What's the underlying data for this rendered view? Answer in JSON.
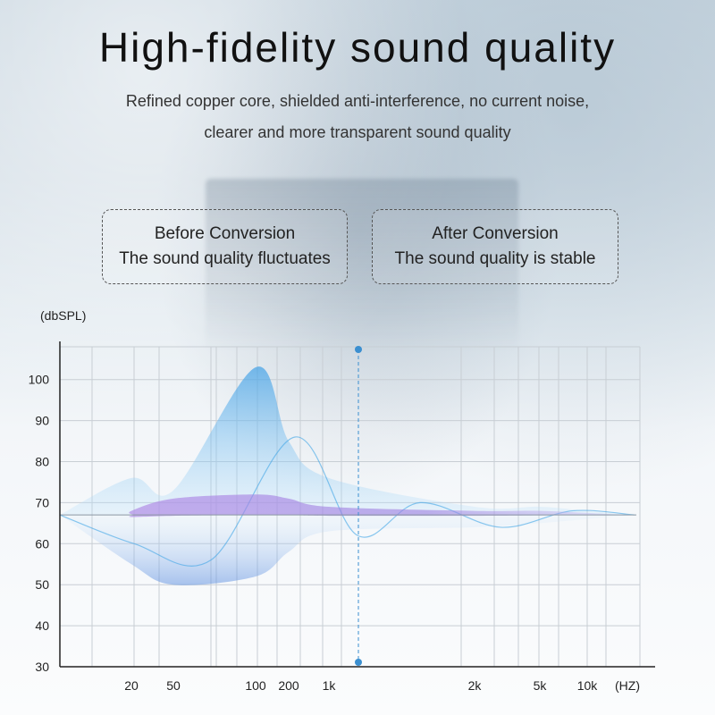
{
  "title": "High-fidelity sound quality",
  "subtitle_line1": "Refined copper core, shielded anti-interference, no current noise,",
  "subtitle_line2": "clearer and more transparent sound quality",
  "before": {
    "title": "Before Conversion",
    "desc": "The sound quality fluctuates"
  },
  "after": {
    "title": "After Conversion",
    "desc": "The sound quality is stable"
  },
  "colors": {
    "before_wave": "#3fa5e6",
    "after_wave": "#a07be0",
    "axis": "#222222",
    "grid": "#c8ced4",
    "marker": "#3b8fd0"
  },
  "chart_data": {
    "type": "area",
    "ylabel": "(dbSPL)",
    "xlabel": "(HZ)",
    "y_ticks": [
      30,
      40,
      50,
      60,
      70,
      80,
      90,
      100
    ],
    "x_ticks": [
      "20",
      "50",
      "100",
      "200",
      "1k",
      "2k",
      "5k",
      "10k"
    ],
    "ylim": [
      30,
      108
    ],
    "baseline": 67,
    "marker_frequency": "1k",
    "series": [
      {
        "name": "Before Conversion",
        "x": [
          "20",
          "50",
          "100",
          "200",
          "1k",
          "2k",
          "5k",
          "10k"
        ],
        "upper": [
          76,
          73,
          103,
          85,
          76,
          69,
          69,
          68
        ],
        "lower": [
          55,
          50,
          52,
          58,
          63,
          64,
          65,
          66
        ]
      },
      {
        "name": "After Conversion",
        "x": [
          "20",
          "50",
          "100",
          "200",
          "1k",
          "2k",
          "5k",
          "10k"
        ],
        "upper": [
          68,
          71,
          72,
          71,
          69,
          68,
          68,
          67.5
        ],
        "lower": [
          66.5,
          66.8,
          67,
          67,
          66.8,
          66.8,
          66.9,
          67
        ]
      }
    ],
    "grid": true
  }
}
